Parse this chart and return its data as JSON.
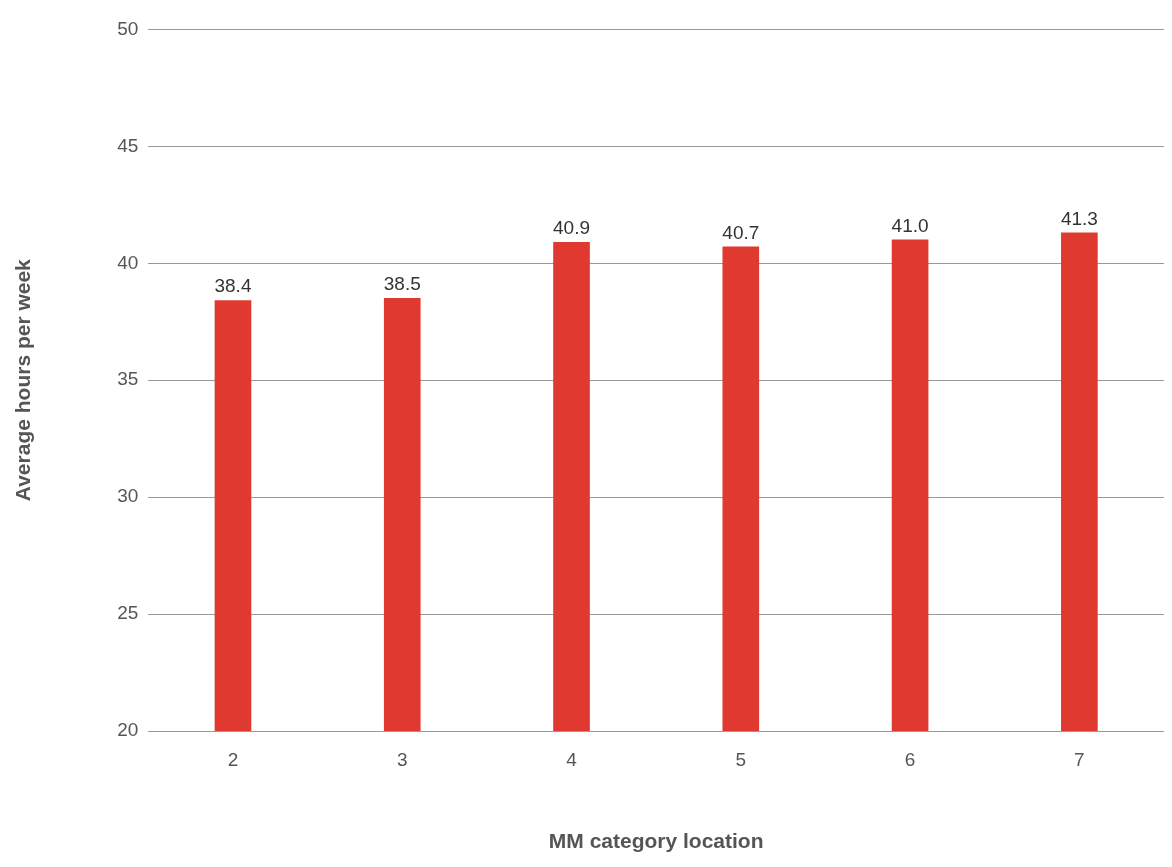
{
  "chart_data": {
    "type": "bar",
    "xlabel": "MM category location",
    "ylabel": "Average hours per week",
    "categories": [
      "2",
      "3",
      "4",
      "5",
      "6",
      "7"
    ],
    "values": [
      38.4,
      38.5,
      40.9,
      40.7,
      41.0,
      41.3
    ],
    "value_labels": [
      "38.4",
      "38.5",
      "40.9",
      "40.7",
      "41.0",
      "41.3"
    ],
    "color": "#e03a30",
    "ylim": [
      20,
      50
    ],
    "yticks": [
      20,
      25,
      30,
      35,
      40,
      45,
      50
    ],
    "grid": "y",
    "legend": false
  }
}
